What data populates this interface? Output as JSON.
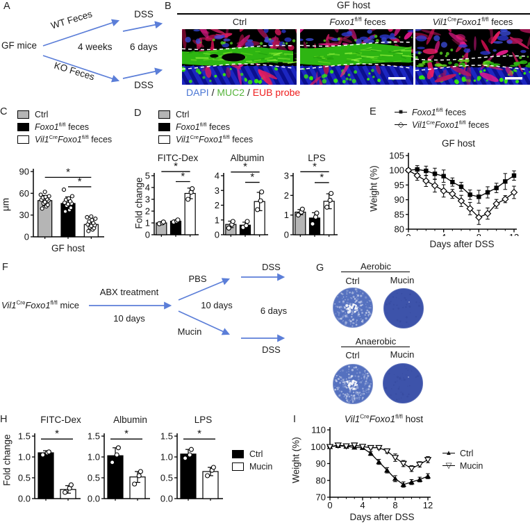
{
  "colors": {
    "gray": "#b5b5b5",
    "black": "#000000",
    "white": "#ffffff",
    "arrow_blue": "#5b7ed8",
    "dapi_blue": "#4a76d4",
    "muc2_green": "#55b43a",
    "eub_red": "#ee1c1c"
  },
  "genes": {
    "vil1": "Vil1",
    "cre": "Cre",
    "foxo1": "Foxo1",
    "flfl": "fl/fl"
  },
  "words": {
    "feces": "feces",
    "mice": "mice",
    "host": "host",
    "ctrl": "Ctrl",
    "mucin": "Mucin",
    "gf_host": "GF host",
    "fold_change": "Fold change",
    "um": "μm",
    "aerobic": "Aerobic",
    "anaerobic": "Anaerobic",
    "weight_pct": "Weight (%)",
    "days_after_dss": "Days after DSS"
  },
  "legend_markers": {
    "square_filled": "■",
    "diamond_open": "◇",
    "triangle_filled": "▲",
    "triangle_down_open": "▽"
  },
  "panels": {
    "a": {
      "label": "A",
      "start": "GF mice",
      "wt_branch": "WT Feces",
      "ko_branch": "KO Feces",
      "weeks": "4 weeks",
      "days": "6 days",
      "dss": "DSS"
    },
    "b": {
      "label": "B",
      "header": "GF host",
      "col1": "Ctrl",
      "caption": {
        "dapi": "DAPI",
        "sep": "/",
        "muc2": "MUC2",
        "eub": "EUB probe"
      }
    },
    "c": {
      "label": "C"
    },
    "d": {
      "label": "D"
    },
    "e": {
      "label": "E"
    },
    "f": {
      "label": "F",
      "abx": "ABX treatment",
      "ten_days_1": "10 days",
      "pbs": "PBS",
      "mucin": "Mucin",
      "ten_days_2": "10 days",
      "six_days": "6 days",
      "dss": "DSS"
    },
    "g": {
      "label": "G",
      "aerobic": "Aerobic",
      "anaerobic": "Anaerobic",
      "ctrl": "Ctrl",
      "mucin": "Mucin"
    },
    "h": {
      "label": "H"
    },
    "i": {
      "label": "I"
    }
  },
  "chart_data": {
    "c": {
      "type": "bar",
      "ylabel": "μm",
      "xlabel": "GF host",
      "ylim": [
        0,
        90
      ],
      "yticks": [
        0,
        30,
        60,
        90
      ],
      "groups": [
        "Ctrl",
        "Foxo1fl/fl feces",
        "Vil1CreFoxo1fl/fl feces"
      ],
      "values": [
        50,
        46,
        17
      ],
      "errors": [
        7,
        9,
        6
      ],
      "colors": [
        "#b5b5b5",
        "#000000",
        "#ffffff"
      ],
      "points": [
        [
          39,
          42,
          44,
          46,
          48,
          50,
          51,
          52,
          54,
          55,
          56,
          58,
          62
        ],
        [
          35,
          37,
          40,
          43,
          45,
          46,
          47,
          49,
          51,
          53,
          56,
          65
        ],
        [
          8,
          10,
          12,
          13,
          15,
          16,
          17,
          19,
          21,
          23,
          25,
          27,
          28
        ]
      ],
      "sig": [
        {
          "i": 0,
          "j": 2,
          "y": 82,
          "label": "*"
        },
        {
          "i": 1,
          "j": 2,
          "y": 69,
          "label": "*"
        }
      ]
    },
    "d": [
      {
        "type": "bar",
        "title": "FITC-Dex",
        "ylim": [
          0,
          5
        ],
        "yticks": [
          0,
          1,
          2,
          3,
          4,
          5
        ],
        "values": [
          1.0,
          1.15,
          3.5
        ],
        "errors": [
          0.1,
          0.1,
          0.45
        ],
        "colors": [
          "#b5b5b5",
          "#000000",
          "#ffffff"
        ],
        "points": [
          [
            0.93,
            1.0,
            1.08
          ],
          [
            1.08,
            1.15,
            1.25
          ],
          [
            3.0,
            3.6,
            3.9
          ]
        ],
        "sig": [
          {
            "i": 0,
            "j": 2,
            "y": 5.35,
            "label": "*"
          },
          {
            "i": 1,
            "j": 2,
            "y": 4.5,
            "label": "*"
          }
        ]
      },
      {
        "type": "bar",
        "title": "Albumin",
        "ylim": [
          0,
          4
        ],
        "yticks": [
          0,
          1,
          2,
          3,
          4
        ],
        "values": [
          0.7,
          0.65,
          2.25
        ],
        "errors": [
          0.22,
          0.2,
          0.62
        ],
        "colors": [
          "#b5b5b5",
          "#000000",
          "#ffffff"
        ],
        "points": [
          [
            0.45,
            0.7,
            0.9
          ],
          [
            0.5,
            0.62,
            0.9
          ],
          [
            1.7,
            2.3,
            2.9
          ]
        ],
        "sig": [
          {
            "i": 0,
            "j": 2,
            "y": 4.25,
            "label": "*"
          },
          {
            "i": 1,
            "j": 2,
            "y": 3.55,
            "label": "*"
          }
        ]
      },
      {
        "type": "bar",
        "title": "LPS",
        "ylim": [
          0,
          3
        ],
        "yticks": [
          0,
          1,
          2,
          3
        ],
        "values": [
          1.15,
          0.85,
          1.7
        ],
        "errors": [
          0.13,
          0.27,
          0.38
        ],
        "colors": [
          "#b5b5b5",
          "#000000",
          "#ffffff"
        ],
        "points": [
          [
            1.0,
            1.15,
            1.3
          ],
          [
            0.55,
            0.9,
            1.1
          ],
          [
            1.4,
            1.75,
            2.1
          ]
        ],
        "sig": [
          {
            "i": 0,
            "j": 2,
            "y": 3.2,
            "label": "*"
          },
          {
            "i": 1,
            "j": 2,
            "y": 2.65,
            "label": "*"
          }
        ]
      }
    ],
    "e": {
      "type": "line",
      "title": "GF host",
      "ylabel": "Weight (%)",
      "xlabel": "Days after DSS",
      "ylim": [
        80,
        105
      ],
      "yticks": [
        80,
        85,
        90,
        95,
        100,
        105
      ],
      "x": [
        0,
        1,
        2,
        3,
        4,
        5,
        6,
        7,
        8,
        9,
        10,
        11,
        12
      ],
      "xticks": [
        0,
        4,
        8,
        12
      ],
      "series": [
        {
          "name": "Foxo1fl/fl feces",
          "marker": "square-filled",
          "values": [
            100,
            100.3,
            99.8,
            98.8,
            98,
            96,
            94.4,
            91.7,
            91,
            92.5,
            94,
            96.2,
            98.2
          ],
          "errors": [
            0.5,
            1.3,
            1.6,
            1.9,
            2.1,
            1.4,
            1.5,
            1.6,
            2.2,
            1.9,
            1.6,
            2.7,
            1.6
          ]
        },
        {
          "name": "Vil1CreFoxo1fl/fl feces",
          "marker": "diamond-open",
          "values": [
            100,
            98.2,
            96.4,
            94.8,
            93,
            92,
            89.6,
            87,
            84,
            85.3,
            88.6,
            90.2,
            92.5
          ],
          "errors": [
            0.3,
            1.6,
            1.9,
            2.2,
            2.1,
            1.5,
            1.9,
            2.1,
            2.4,
            1.9,
            1.5,
            1.2,
            2.1
          ]
        }
      ]
    },
    "h": [
      {
        "type": "bar",
        "title": "FITC-Dex",
        "ylim": [
          0,
          1.5
        ],
        "yticks": [
          0,
          0.5,
          1,
          1.5
        ],
        "ytick_labels": [
          "0.0",
          "0.5",
          "1.0",
          "1.5"
        ],
        "values": [
          1.1,
          0.22
        ],
        "errors": [
          0.05,
          0.09
        ],
        "colors": [
          "#000000",
          "#ffffff"
        ],
        "points": [
          [
            1.05,
            1.1,
            1.12
          ],
          [
            0.15,
            0.25,
            0.33
          ]
        ],
        "sig": [
          {
            "i": 0,
            "j": 1,
            "y": 1.43,
            "label": "*"
          }
        ]
      },
      {
        "type": "bar",
        "title": "Albumin",
        "ylim": [
          0,
          1.5
        ],
        "yticks": [
          0,
          0.5,
          1,
          1.5
        ],
        "ytick_labels": [
          "0.0",
          "0.5",
          "1.0",
          "1.5"
        ],
        "values": [
          1.03,
          0.52
        ],
        "errors": [
          0.19,
          0.13
        ],
        "colors": [
          "#000000",
          "#ffffff"
        ],
        "points": [
          [
            0.87,
            1.05,
            1.22
          ],
          [
            0.35,
            0.55,
            0.65
          ]
        ],
        "sig": [
          {
            "i": 0,
            "j": 1,
            "y": 1.43,
            "label": "*"
          }
        ]
      },
      {
        "type": "bar",
        "title": "LPS",
        "ylim": [
          0,
          1.5
        ],
        "yticks": [
          0,
          0.5,
          1,
          1.5
        ],
        "ytick_labels": [
          "0.0",
          "0.5",
          "1.0",
          "1.5"
        ],
        "values": [
          1.07,
          0.65
        ],
        "errors": [
          0.11,
          0.1
        ],
        "colors": [
          "#000000",
          "#ffffff"
        ],
        "points": [
          [
            0.97,
            1.05,
            1.18
          ],
          [
            0.55,
            0.68,
            0.75
          ]
        ],
        "sig": [
          {
            "i": 0,
            "j": 1,
            "y": 1.43,
            "label": "*"
          }
        ]
      }
    ],
    "i": {
      "type": "line",
      "title": "Vil1CreFoxo1fl/fl host",
      "ylabel": "Weight (%)",
      "xlabel": "Days after DSS",
      "ylim": [
        70,
        110
      ],
      "yticks": [
        70,
        80,
        90,
        100,
        110
      ],
      "x": [
        0,
        1,
        2,
        3,
        4,
        5,
        6,
        7,
        8,
        9,
        10,
        11,
        12
      ],
      "xticks": [
        0,
        4,
        8,
        12
      ],
      "series": [
        {
          "name": "Ctrl",
          "marker": "triangle-filled",
          "values": [
            100,
            100.6,
            100.2,
            99.6,
            99.4,
            96,
            91,
            86,
            81,
            77.5,
            79,
            80.5,
            82.5
          ],
          "errors": [
            0.4,
            0.7,
            0.6,
            0.8,
            0.9,
            1.2,
            1.5,
            1.6,
            1.8,
            1.6,
            1.5,
            1.4,
            1.5
          ]
        },
        {
          "name": "Mucin",
          "marker": "triangle-down-open",
          "values": [
            100,
            100.9,
            100.4,
            100.9,
            100.1,
            99.4,
            99.4,
            97.4,
            93.5,
            90,
            87,
            89.5,
            92.3
          ],
          "errors": [
            0.5,
            0.8,
            0.7,
            0.8,
            0.9,
            0.8,
            1.0,
            1.2,
            2.2,
            1.8,
            1.7,
            1.6,
            1.8
          ]
        }
      ]
    }
  }
}
